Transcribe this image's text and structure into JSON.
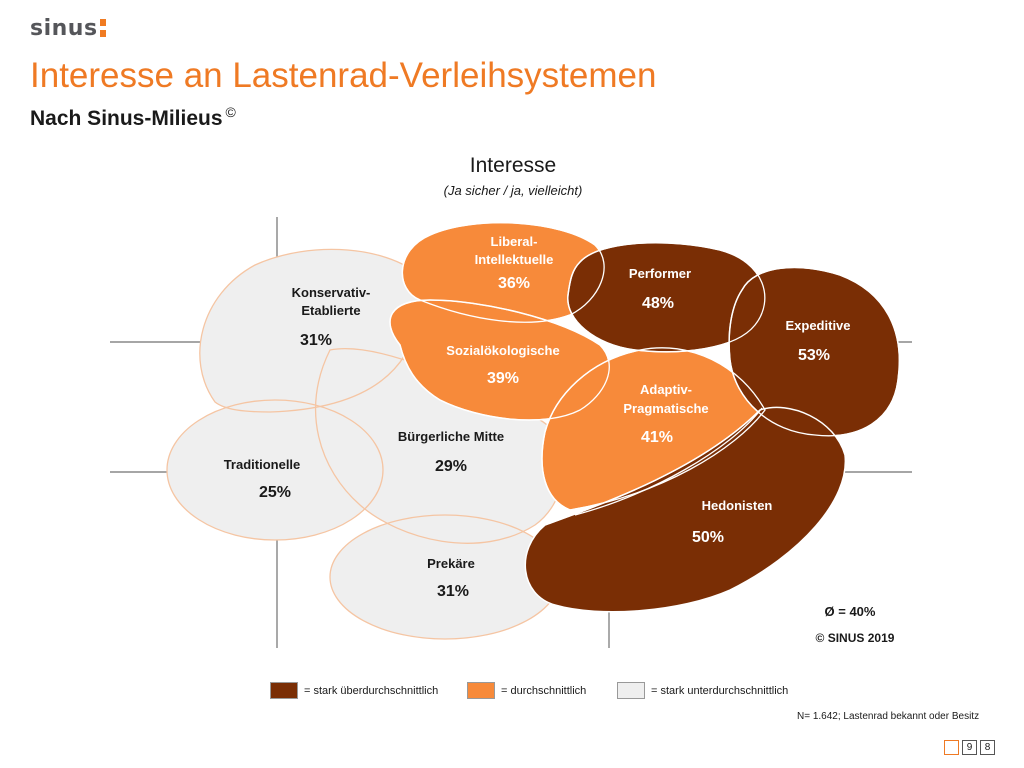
{
  "logo": "sinus",
  "title": "Interesse an Lastenrad-Verleihsystemen",
  "subtitle": "Nach Sinus-Milieus",
  "subtitle_mark": "©",
  "chart_title": "Interesse",
  "chart_subtitle": "(Ja sicher / ja, vielleicht)",
  "colors": {
    "stark_ueber": "#7a2e05",
    "durchschnitt": "#f78a3a",
    "stark_unter": "#efefef",
    "outline": "#f5c5a3",
    "title": "#ef7a24"
  },
  "milieus": [
    {
      "id": "konservativ",
      "name_line1": "Konservativ-",
      "name_line2": "Etablierte",
      "value": "31%",
      "level": "stark_unter"
    },
    {
      "id": "traditionelle",
      "name_line1": "Traditionelle",
      "name_line2": "",
      "value": "25%",
      "level": "stark_unter"
    },
    {
      "id": "buergerliche",
      "name_line1": "Bürgerliche Mitte",
      "name_line2": "",
      "value": "29%",
      "level": "stark_unter"
    },
    {
      "id": "prekaere",
      "name_line1": "Prekäre",
      "name_line2": "",
      "value": "31%",
      "level": "stark_unter"
    },
    {
      "id": "liberal",
      "name_line1": "Liberal-",
      "name_line2": "Intellektuelle",
      "value": "36%",
      "level": "durchschnitt"
    },
    {
      "id": "sozial",
      "name_line1": "Sozialökologische",
      "name_line2": "",
      "value": "39%",
      "level": "durchschnitt"
    },
    {
      "id": "adaptiv",
      "name_line1": "Adaptiv-",
      "name_line2": "Pragmatische",
      "value": "41%",
      "level": "durchschnitt"
    },
    {
      "id": "performer",
      "name_line1": "Performer",
      "name_line2": "",
      "value": "48%",
      "level": "stark_ueber"
    },
    {
      "id": "expeditive",
      "name_line1": "Expeditive",
      "name_line2": "",
      "value": "53%",
      "level": "stark_ueber"
    },
    {
      "id": "hedonisten",
      "name_line1": "Hedonisten",
      "name_line2": "",
      "value": "50%",
      "level": "stark_ueber"
    }
  ],
  "average": "Ø = 40%",
  "copyright": "© SINUS 2019",
  "legend": [
    {
      "label": "= stark überdurchschnittlich",
      "color": "#7a2e05"
    },
    {
      "label": "= durchschnittlich",
      "color": "#f78a3a"
    },
    {
      "label": "= stark unterdurchschnittlich",
      "color": "#efefef"
    }
  ],
  "note": "N= 1.642; Lastenrad bekannt oder Besitz",
  "pages": [
    "",
    "9",
    "8"
  ]
}
